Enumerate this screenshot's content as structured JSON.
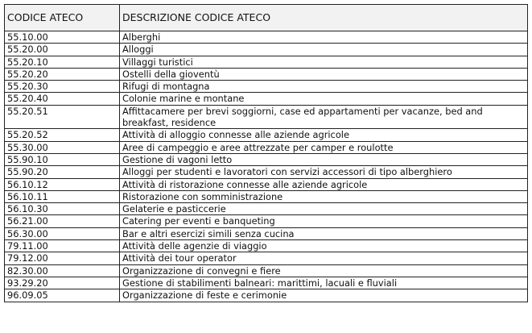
{
  "header": {
    "code": "CODICE ATECO",
    "description": "DESCRIZIONE CODICE ATECO"
  },
  "rows": [
    {
      "code": "55.10.00",
      "description": "Alberghi"
    },
    {
      "code": "55.20.00",
      "description": "Alloggi"
    },
    {
      "code": "55.20.10",
      "description": "Villaggi turistici"
    },
    {
      "code": "55.20.20",
      "description": "Ostelli della gioventù"
    },
    {
      "code": "55.20.30",
      "description": "Rifugi di montagna"
    },
    {
      "code": "55.20.40",
      "description": "Colonie marine e montane"
    },
    {
      "code": "55.20.51",
      "description": "Affittacamere per brevi soggiorni, case ed appartamenti per vacanze, bed and breakfast, residence"
    },
    {
      "code": "55.20.52",
      "description": "Attività di alloggio connesse alle aziende agricole"
    },
    {
      "code": "55.30.00",
      "description": "Aree di campeggio e aree attrezzate per camper e roulotte"
    },
    {
      "code": "55.90.10",
      "description": "Gestione di vagoni letto"
    },
    {
      "code": "55.90.20",
      "description": "Alloggi per studenti e lavoratori con servizi accessori di tipo alberghiero"
    },
    {
      "code": "56.10.12",
      "description": "Attività di ristorazione connesse alle aziende agricole"
    },
    {
      "code": "56.10.11",
      "description": "Ristorazione con somministrazione"
    },
    {
      "code": "56.10.30",
      "description": "Gelaterie e pasticcerie"
    },
    {
      "code": "56.21.00",
      "description": "Catering per eventi e banqueting"
    },
    {
      "code": "56.30.00",
      "description": "Bar e altri esercizi simili senza cucina"
    },
    {
      "code": "79.11.00",
      "description": "Attività delle agenzie di viaggio"
    },
    {
      "code": "79.12.00",
      "description": "Attività dei tour operator"
    },
    {
      "code": "82.30.00",
      "description": "Organizzazione di convegni e fiere"
    },
    {
      "code": "93.29.20",
      "description": "Gestione di stabilimenti balneari: marittimi, lacuali e fluviali"
    },
    {
      "code": "96.09.05",
      "description": "Organizzazione di feste e cerimonie"
    }
  ]
}
